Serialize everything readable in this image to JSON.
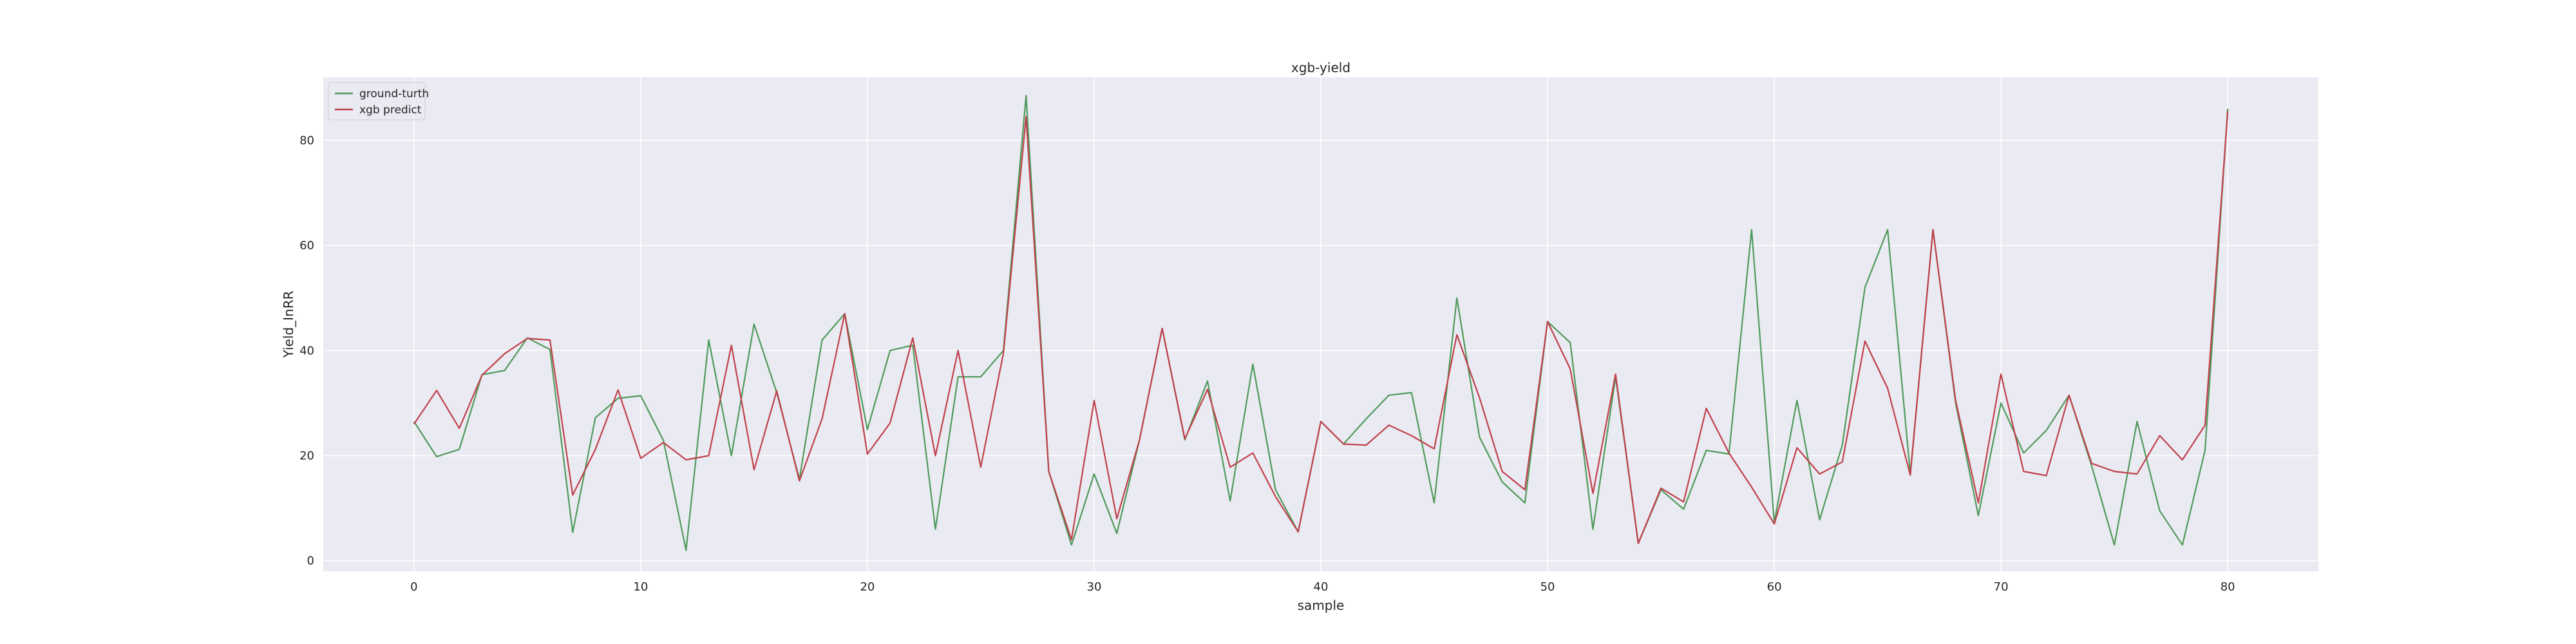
{
  "chart_data": {
    "type": "line",
    "title": "xgb-yield",
    "xlabel": "sample",
    "ylabel": "Yield_InRR",
    "xlim": [
      -4,
      84
    ],
    "ylim": [
      -2,
      92
    ],
    "xticks": [
      0,
      10,
      20,
      30,
      40,
      50,
      60,
      70,
      80
    ],
    "yticks": [
      0,
      20,
      40,
      60,
      80
    ],
    "grid": true,
    "legend_position": "upper left",
    "x": [
      0,
      1,
      2,
      3,
      4,
      5,
      6,
      7,
      8,
      9,
      10,
      11,
      12,
      13,
      14,
      15,
      16,
      17,
      18,
      19,
      20,
      21,
      22,
      23,
      24,
      25,
      26,
      27,
      28,
      29,
      30,
      31,
      32,
      33,
      34,
      35,
      36,
      37,
      38,
      39,
      40,
      41,
      42,
      43,
      44,
      45,
      46,
      47,
      48,
      49,
      50,
      51,
      52,
      53,
      54,
      55,
      56,
      57,
      58,
      59,
      60,
      61,
      62,
      63,
      64,
      65,
      66,
      67,
      68,
      69,
      70,
      71,
      72,
      73,
      74,
      75,
      76,
      77,
      78,
      79,
      80
    ],
    "series": [
      {
        "name": "ground-turth",
        "color": "#4f9a5b",
        "values": [
          26.5,
          19.8,
          21.2,
          35.4,
          36.2,
          42.4,
          40.2,
          5.4,
          27.2,
          30.9,
          31.4,
          22.9,
          2.0,
          42.0,
          20.0,
          45.0,
          32.0,
          15.5,
          42.0,
          47.0,
          25.0,
          40.0,
          41.0,
          6.0,
          35.0,
          35.0,
          40.0,
          88.5,
          17.0,
          3.0,
          16.5,
          5.2,
          23.0,
          44.2,
          23.0,
          34.2,
          11.4,
          37.4,
          13.5,
          5.5,
          26.5,
          22.2,
          27.0,
          31.5,
          32.0,
          11.0,
          50.0,
          23.5,
          15.0,
          11.0,
          45.5,
          41.5,
          6.0,
          35.0,
          3.3,
          13.5,
          9.8,
          21.0,
          20.3,
          63.0,
          7.3,
          30.5,
          7.8,
          22.0,
          52.0,
          63.0,
          16.5,
          63.0,
          30.0,
          8.6,
          30.0,
          20.5,
          24.8,
          31.5,
          18.0,
          3.0,
          26.5,
          9.5,
          3.0,
          21.0,
          86.0
        ]
      },
      {
        "name": "xgb predict",
        "color": "#c0404b",
        "values": [
          26.0,
          32.4,
          25.2,
          35.3,
          39.4,
          42.3,
          42.0,
          12.5,
          21.2,
          32.5,
          19.5,
          22.5,
          19.2,
          20.0,
          41.0,
          17.3,
          32.3,
          15.2,
          27.0,
          47.0,
          20.3,
          26.2,
          42.4,
          20.0,
          40.0,
          17.8,
          39.5,
          84.5,
          17.0,
          4.0,
          30.5,
          8.0,
          23.0,
          44.2,
          23.2,
          32.6,
          17.8,
          20.5,
          12.2,
          5.5,
          26.5,
          22.2,
          22.0,
          25.8,
          23.8,
          21.3,
          43.0,
          31.0,
          17.0,
          13.5,
          45.5,
          36.5,
          12.8,
          35.5,
          3.3,
          13.8,
          11.2,
          29.0,
          20.5,
          14.0,
          7.0,
          21.5,
          16.5,
          18.8,
          41.8,
          32.8,
          16.3,
          63.0,
          30.5,
          11.0,
          35.5,
          17.0,
          16.2,
          31.5,
          18.5,
          17.0,
          16.5,
          23.8,
          19.2,
          25.8,
          85.5
        ]
      }
    ]
  }
}
